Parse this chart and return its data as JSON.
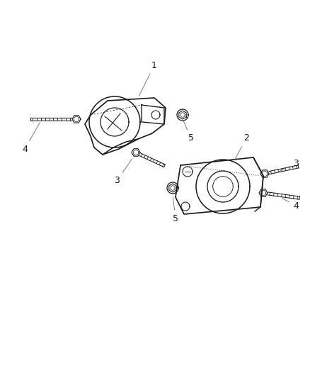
{
  "bg_color": "#ffffff",
  "line_color": "#1a1a1a",
  "fig_width": 4.38,
  "fig_height": 5.33,
  "dpi": 100,
  "label_fontsize": 9,
  "label_color": "#1a1a1a",
  "callout_line_color": "#666666",
  "callout_lw": 0.6
}
